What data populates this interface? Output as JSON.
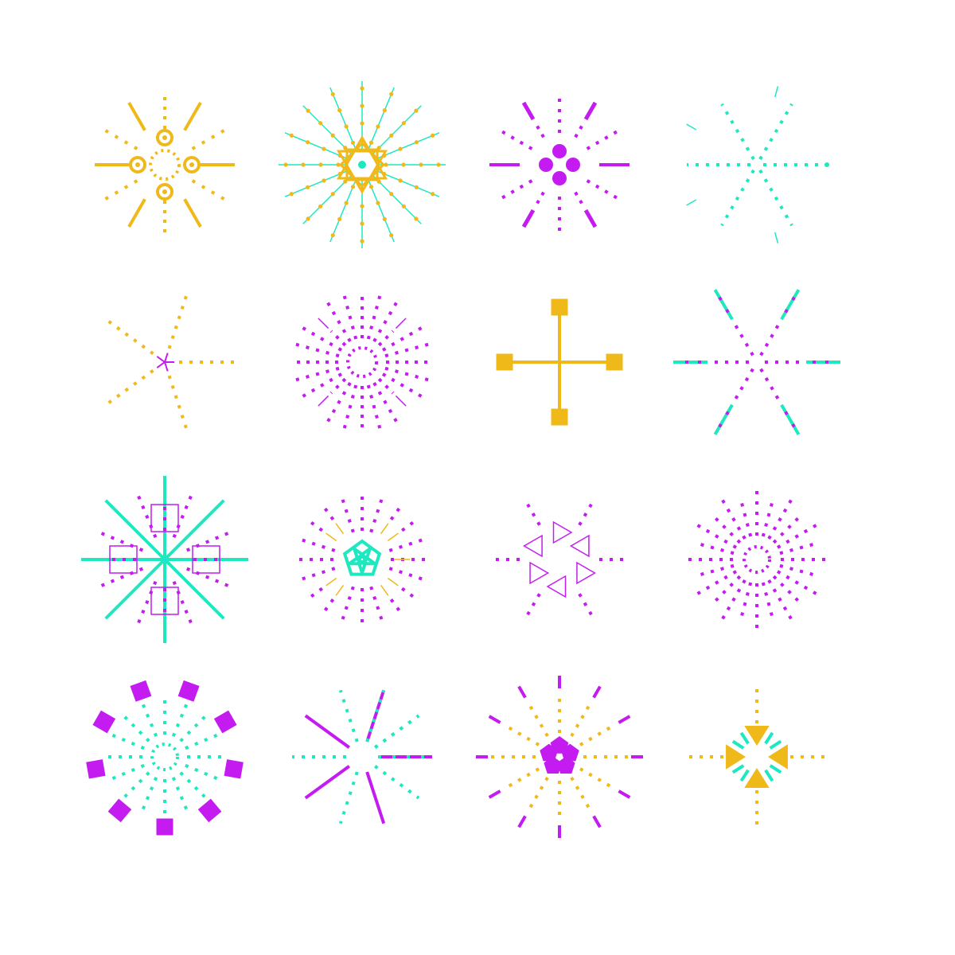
{
  "palette": {
    "gold": "#f0b91a",
    "teal": "#1ee8c0",
    "purple": "#c41cf0",
    "background": "#ffffff"
  },
  "grid": {
    "rows": 4,
    "columns": 4
  },
  "glyphs": [
    {
      "id": "glyph-1",
      "row": 1,
      "col": 1,
      "spokes": 8,
      "color": "gold",
      "accent": "gold",
      "center": "dotted-ring-with-rings"
    },
    {
      "id": "glyph-2",
      "row": 1,
      "col": 2,
      "spokes": 16,
      "color": "teal",
      "accent": "gold",
      "center": "star-of-squares"
    },
    {
      "id": "glyph-3",
      "row": 1,
      "col": 3,
      "spokes": 12,
      "color": "purple",
      "accent": "purple",
      "center": "four-dots"
    },
    {
      "id": "glyph-4",
      "row": 1,
      "col": 4,
      "spokes": 6,
      "color": "teal",
      "accent": "teal",
      "center": "none"
    },
    {
      "id": "glyph-5",
      "row": 2,
      "col": 1,
      "spokes": 5,
      "color": "gold",
      "accent": "purple",
      "center": "small-asterisk"
    },
    {
      "id": "glyph-6",
      "row": 2,
      "col": 2,
      "spokes": 24,
      "color": "purple",
      "accent": "purple",
      "center": "dotted-ring"
    },
    {
      "id": "glyph-7",
      "row": 2,
      "col": 3,
      "spokes": 4,
      "color": "gold",
      "accent": "gold",
      "center": "cross-with-squares"
    },
    {
      "id": "glyph-8",
      "row": 2,
      "col": 4,
      "spokes": 6,
      "color": "purple",
      "accent": "teal",
      "center": "none"
    },
    {
      "id": "glyph-9",
      "row": 3,
      "col": 1,
      "spokes": 8,
      "color": "teal",
      "accent": "purple",
      "center": "four-squares"
    },
    {
      "id": "glyph-10",
      "row": 3,
      "col": 2,
      "spokes": 20,
      "color": "purple",
      "accent": "gold",
      "center": "pentagon-ring"
    },
    {
      "id": "glyph-11",
      "row": 3,
      "col": 3,
      "spokes": 6,
      "color": "purple",
      "accent": "purple",
      "center": "triangle-ring"
    },
    {
      "id": "glyph-12",
      "row": 3,
      "col": 4,
      "spokes": 24,
      "color": "purple",
      "accent": "purple",
      "center": "dotted-ring"
    },
    {
      "id": "glyph-13",
      "row": 4,
      "col": 1,
      "spokes": 16,
      "color": "teal",
      "accent": "purple",
      "center": "outer-squares"
    },
    {
      "id": "glyph-14",
      "row": 4,
      "col": 2,
      "spokes": 10,
      "color": "teal",
      "accent": "purple",
      "center": "mixed-spokes"
    },
    {
      "id": "glyph-15",
      "row": 4,
      "col": 3,
      "spokes": 12,
      "color": "gold",
      "accent": "purple",
      "center": "pentagon-flower"
    },
    {
      "id": "glyph-16",
      "row": 4,
      "col": 4,
      "spokes": 4,
      "color": "gold",
      "accent": "teal",
      "center": "four-arrows"
    }
  ]
}
